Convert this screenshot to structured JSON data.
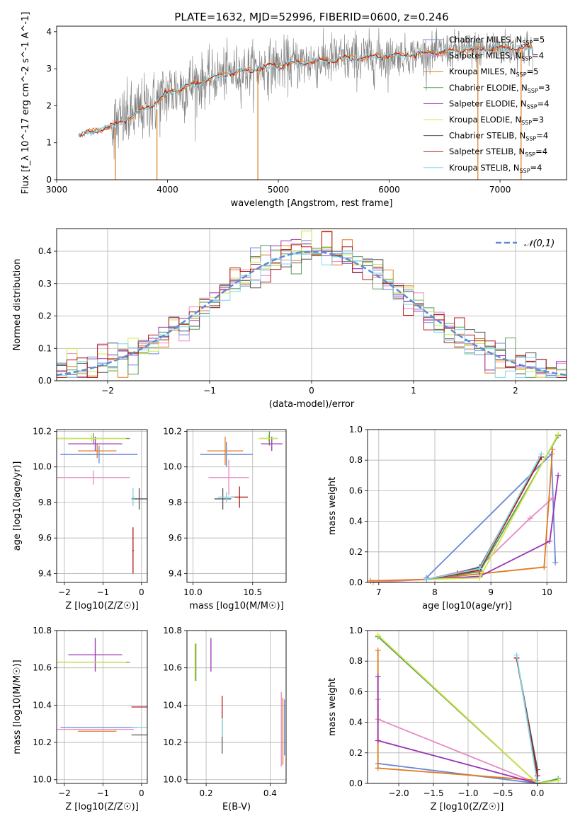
{
  "figure": {
    "title": "PLATE=1632, MJD=52996, FIBERID=0600, z=0.246"
  },
  "colors": {
    "Chabrier MILES": "#6a88d8",
    "Salpeter MILES": "#e68cc4",
    "Kroupa MILES": "#e07a1e",
    "Chabrier ELODIE": "#5a9a58",
    "Salpeter ELODIE": "#9a34b4",
    "Kroupa ELODIE": "#cde64a",
    "Chabrier STELIB": "#555555",
    "Salpeter STELIB": "#b01818",
    "Kroupa STELIB": "#7fd6e4",
    "data": "#808080",
    "normal": "#5b8bd6"
  },
  "chart_data": [
    {
      "id": "spectrum",
      "type": "line",
      "title": "PLATE=1632, MJD=52996, FIBERID=0600, z=0.246",
      "xlabel": "wavelength [Angstrom, rest frame]",
      "ylabel": "Flux [f_λ 10^-17 erg cm^-2 s^-1 A^-1]",
      "xlim": [
        3000,
        7600
      ],
      "ylim": [
        0,
        4.15
      ],
      "xticks": [
        3000,
        4000,
        5000,
        6000,
        7000
      ],
      "yticks": [
        0,
        1,
        2,
        3,
        4
      ],
      "grid": false,
      "legend_position": "top-right",
      "data_envelope": {
        "x": [
          3200,
          3500,
          3600,
          3900,
          4000,
          4300,
          4500,
          4800,
          5000,
          5500,
          6000,
          6300,
          6600,
          7000,
          7300
        ],
        "y": [
          1.2,
          1.45,
          1.6,
          2.1,
          2.35,
          2.65,
          2.85,
          3.0,
          3.1,
          3.25,
          3.35,
          3.4,
          3.5,
          3.55,
          3.55
        ]
      },
      "legend": [
        {
          "name": "Chabrier MILES",
          "nssp": "5"
        },
        {
          "name": "Salpeter MILES",
          "nssp": "4"
        },
        {
          "name": "Kroupa MILES",
          "nssp": "5"
        },
        {
          "name": "Chabrier ELODIE",
          "nssp": "3"
        },
        {
          "name": "Salpeter ELODIE",
          "nssp": "4"
        },
        {
          "name": "Kroupa ELODIE",
          "nssp": "3"
        },
        {
          "name": "Chabrier STELIB",
          "nssp": "4"
        },
        {
          "name": "Salpeter STELIB",
          "nssp": "4"
        },
        {
          "name": "Kroupa STELIB",
          "nssp": "4"
        }
      ]
    },
    {
      "id": "residuals",
      "type": "step-histogram",
      "xlabel": "(data-model)/error",
      "ylabel": "Normed distribution",
      "xlim": [
        -2.5,
        2.5
      ],
      "ylim": [
        0,
        0.47
      ],
      "xticks": [
        -2,
        -1,
        0,
        1,
        2
      ],
      "yticks": [
        0.0,
        0.1,
        0.2,
        0.3,
        0.4
      ],
      "grid": true,
      "bin_width": 0.1,
      "legend": {
        "label": "𝒩(0,1)",
        "position": "top-right"
      }
    },
    {
      "id": "age_vs_Z",
      "type": "errorbar",
      "xlabel": "Z [log10(Z/Z☉)]",
      "ylabel": "age [log10(age/yr)]",
      "xlim": [
        -2.2,
        0.15
      ],
      "ylim": [
        9.35,
        10.21
      ],
      "xticks": [
        -2,
        -1,
        0
      ],
      "yticks": [
        9.4,
        9.6,
        9.8,
        10.0,
        10.2
      ],
      "grid": true,
      "points": [
        {
          "model": "Chabrier MILES",
          "x": -1.1,
          "xerr": 1.0,
          "y": 10.07,
          "yerr": 0.05
        },
        {
          "model": "Salpeter MILES",
          "x": -1.25,
          "xerr": 0.95,
          "y": 9.94,
          "yerr": 0.04
        },
        {
          "model": "Kroupa MILES",
          "x": -1.15,
          "xerr": 0.5,
          "y": 10.09,
          "yerr": 0.04
        },
        {
          "model": "Chabrier ELODIE",
          "x": -1.25,
          "xerr": 0.95,
          "y": 10.16,
          "yerr": 0.03
        },
        {
          "model": "Salpeter ELODIE",
          "x": -1.2,
          "xerr": 0.7,
          "y": 10.13,
          "yerr": 0.04
        },
        {
          "model": "Kroupa ELODIE",
          "x": -1.3,
          "xerr": 0.9,
          "y": 10.16,
          "yerr": 0.02
        },
        {
          "model": "Chabrier STELIB",
          "x": -0.06,
          "xerr": 0.2,
          "y": 9.82,
          "yerr": 0.06
        },
        {
          "model": "Salpeter STELIB",
          "x": -0.22,
          "xerr": 0.02,
          "y": 9.53,
          "yerr": 0.13
        },
        {
          "model": "Kroupa STELIB",
          "x": -0.22,
          "xerr": 0.03,
          "y": 9.83,
          "yerr": 0.05
        }
      ]
    },
    {
      "id": "age_vs_mass",
      "type": "errorbar",
      "xlabel": "mass [log10(M/M☉)]",
      "ylabel": "",
      "xlim": [
        9.95,
        10.78
      ],
      "ylim": [
        9.35,
        10.21
      ],
      "xticks": [
        10.0,
        10.5
      ],
      "yticks": [
        9.4,
        9.6,
        9.8,
        10.0,
        10.2
      ],
      "grid": true,
      "points": [
        {
          "model": "Chabrier MILES",
          "x": 10.28,
          "xerr": 0.22,
          "y": 10.07,
          "yerr": 0.07
        },
        {
          "model": "Salpeter MILES",
          "x": 10.3,
          "xerr": 0.17,
          "y": 9.94,
          "yerr": 0.1
        },
        {
          "model": "Kroupa MILES",
          "x": 10.27,
          "xerr": 0.15,
          "y": 10.09,
          "yerr": 0.08
        },
        {
          "model": "Chabrier ELODIE",
          "x": 10.64,
          "xerr": 0.07,
          "y": 10.16,
          "yerr": 0.04
        },
        {
          "model": "Salpeter ELODIE",
          "x": 10.66,
          "xerr": 0.09,
          "y": 10.13,
          "yerr": 0.04
        },
        {
          "model": "Kroupa ELODIE",
          "x": 10.63,
          "xerr": 0.08,
          "y": 10.16,
          "yerr": 0.02
        },
        {
          "model": "Chabrier STELIB",
          "x": 10.25,
          "xerr": 0.07,
          "y": 9.82,
          "yerr": 0.06
        },
        {
          "model": "Salpeter STELIB",
          "x": 10.39,
          "xerr": 0.07,
          "y": 9.83,
          "yerr": 0.06
        },
        {
          "model": "Kroupa STELIB",
          "x": 10.28,
          "xerr": 0.07,
          "y": 9.83,
          "yerr": 0.03
        }
      ]
    },
    {
      "id": "massweight_vs_age",
      "type": "line",
      "xlabel": "age [log10(age/yr)]",
      "ylabel": "mass weight",
      "xlim": [
        6.8,
        10.35
      ],
      "ylim": [
        0,
        1
      ],
      "xticks": [
        7,
        8,
        9,
        10
      ],
      "yticks": [
        0.0,
        0.2,
        0.4,
        0.6,
        0.8,
        1.0
      ],
      "grid": true,
      "series": [
        {
          "model": "Chabrier MILES",
          "x": [
            7.85,
            10.08,
            10.15
          ],
          "y": [
            0.03,
            0.84,
            0.13
          ]
        },
        {
          "model": "Salpeter MILES",
          "x": [
            6.9,
            7.85,
            8.8,
            9.7,
            10.1
          ],
          "y": [
            0.0,
            0.02,
            0.1,
            0.42,
            0.55
          ]
        },
        {
          "model": "Kroupa MILES",
          "x": [
            6.85,
            7.85,
            9.95,
            10.1
          ],
          "y": [
            0.01,
            0.02,
            0.1,
            0.87
          ]
        },
        {
          "model": "Chabrier ELODIE",
          "x": [
            7.85,
            8.8,
            10.2
          ],
          "y": [
            0.02,
            0.07,
            0.96
          ]
        },
        {
          "model": "Salpeter ELODIE",
          "x": [
            7.85,
            8.8,
            10.05,
            10.2
          ],
          "y": [
            0.02,
            0.04,
            0.27,
            0.7
          ]
        },
        {
          "model": "Kroupa ELODIE",
          "x": [
            7.85,
            8.8,
            10.2
          ],
          "y": [
            0.02,
            0.03,
            0.97
          ]
        },
        {
          "model": "Chabrier STELIB",
          "x": [
            7.85,
            8.4,
            8.8,
            9.9
          ],
          "y": [
            0.02,
            0.06,
            0.1,
            0.82
          ]
        },
        {
          "model": "Salpeter STELIB",
          "x": [
            7.85,
            8.8,
            9.9
          ],
          "y": [
            0.02,
            0.08,
            0.82
          ]
        },
        {
          "model": "Kroupa STELIB",
          "x": [
            7.85,
            8.8,
            9.9
          ],
          "y": [
            0.02,
            0.09,
            0.84
          ]
        }
      ]
    },
    {
      "id": "mass_vs_Z",
      "type": "errorbar",
      "xlabel": "Z [log10(Z/Z☉)]",
      "ylabel": "mass [log10(M/M☉)]",
      "xlim": [
        -2.2,
        0.15
      ],
      "ylim": [
        9.98,
        10.8
      ],
      "xticks": [
        -2,
        -1,
        0
      ],
      "yticks": [
        10.0,
        10.2,
        10.4,
        10.6,
        10.8
      ],
      "grid": true,
      "points": [
        {
          "model": "Chabrier MILES",
          "x": -1.1,
          "xerr": 1.0,
          "y": 10.28,
          "yerr": 0.0
        },
        {
          "model": "Salpeter MILES",
          "x": -1.2,
          "xerr": 1.0,
          "y": 10.27,
          "yerr": 0.0
        },
        {
          "model": "Kroupa MILES",
          "x": -1.15,
          "xerr": 0.5,
          "y": 10.26,
          "yerr": 0.0
        },
        {
          "model": "Chabrier ELODIE",
          "x": -1.25,
          "xerr": 0.95,
          "y": 10.63,
          "yerr": 0.0
        },
        {
          "model": "Salpeter ELODIE",
          "x": -1.2,
          "xerr": 0.7,
          "y": 10.67,
          "yerr": 0.09
        },
        {
          "model": "Kroupa ELODIE",
          "x": -1.3,
          "xerr": 0.9,
          "y": 10.63,
          "yerr": 0.0
        },
        {
          "model": "Chabrier STELIB",
          "x": -0.06,
          "xerr": 0.2,
          "y": 10.24,
          "yerr": 0.0
        },
        {
          "model": "Salpeter STELIB",
          "x": -0.06,
          "xerr": 0.2,
          "y": 10.39,
          "yerr": 0.0
        },
        {
          "model": "Kroupa STELIB",
          "x": -0.06,
          "xerr": 0.2,
          "y": 10.28,
          "yerr": 0.0
        }
      ]
    },
    {
      "id": "mass_vs_EBV",
      "type": "errorbar",
      "xlabel": "E(B-V)",
      "ylabel": "",
      "xlim": [
        0.14,
        0.45
      ],
      "ylim": [
        9.98,
        10.8
      ],
      "xticks": [
        0.2,
        0.4
      ],
      "yticks": [
        10.0,
        10.2,
        10.4,
        10.6,
        10.8
      ],
      "grid": true,
      "points": [
        {
          "model": "Chabrier MILES",
          "x": 0.445,
          "y": 10.28,
          "yerr": 0.15
        },
        {
          "model": "Salpeter MILES",
          "x": 0.435,
          "y": 10.27,
          "yerr": 0.2
        },
        {
          "model": "Kroupa MILES",
          "x": 0.44,
          "y": 10.26,
          "yerr": 0.18
        },
        {
          "model": "Chabrier ELODIE",
          "x": 0.168,
          "y": 10.63,
          "yerr": 0.1
        },
        {
          "model": "Salpeter ELODIE",
          "x": 0.215,
          "y": 10.67,
          "yerr": 0.09
        },
        {
          "model": "Kroupa ELODIE",
          "x": 0.165,
          "y": 10.63,
          "yerr": 0.1
        },
        {
          "model": "Chabrier STELIB",
          "x": 0.25,
          "y": 10.24,
          "yerr": 0.1
        },
        {
          "model": "Salpeter STELIB",
          "x": 0.25,
          "y": 10.39,
          "yerr": 0.06
        },
        {
          "model": "Kroupa STELIB",
          "x": 0.25,
          "y": 10.28,
          "yerr": 0.05
        }
      ]
    },
    {
      "id": "massweight_vs_Z",
      "type": "line",
      "xlabel": "Z [log10(Z/Z☉)]",
      "ylabel": "mass weight",
      "xlim": [
        -2.45,
        0.42
      ],
      "ylim": [
        0,
        1
      ],
      "xticks": [
        -2.0,
        -1.5,
        -1.0,
        -0.5,
        0.0
      ],
      "yticks": [
        0.0,
        0.2,
        0.4,
        0.6,
        0.8,
        1.0
      ],
      "grid": true,
      "series": [
        {
          "model": "Chabrier MILES",
          "x": [
            -2.3,
            0.0
          ],
          "y": [
            0.13,
            0.0
          ]
        },
        {
          "model": "Salpeter MILES",
          "x": [
            -2.3,
            -2.3,
            0.0
          ],
          "y": [
            0.55,
            0.42,
            0.0
          ]
        },
        {
          "model": "Kroupa MILES",
          "x": [
            -2.3,
            -2.3,
            0.0
          ],
          "y": [
            0.87,
            0.1,
            0.02
          ]
        },
        {
          "model": "Chabrier ELODIE",
          "x": [
            -2.3,
            0.0,
            0.3
          ],
          "y": [
            0.96,
            0.0,
            0.03
          ]
        },
        {
          "model": "Salpeter ELODIE",
          "x": [
            -2.3,
            -2.3,
            0.0
          ],
          "y": [
            0.7,
            0.28,
            0.0
          ]
        },
        {
          "model": "Kroupa ELODIE",
          "x": [
            -2.3,
            0.0,
            0.3
          ],
          "y": [
            0.97,
            0.0,
            0.02
          ]
        },
        {
          "model": "Chabrier STELIB",
          "x": [
            -0.3,
            0.0,
            0.0
          ],
          "y": [
            0.82,
            0.09,
            0.0
          ]
        },
        {
          "model": "Salpeter STELIB",
          "x": [
            -0.3,
            0.0
          ],
          "y": [
            0.82,
            0.05
          ]
        },
        {
          "model": "Kroupa STELIB",
          "x": [
            -0.3,
            0.0
          ],
          "y": [
            0.84,
            0.0
          ]
        }
      ]
    }
  ]
}
